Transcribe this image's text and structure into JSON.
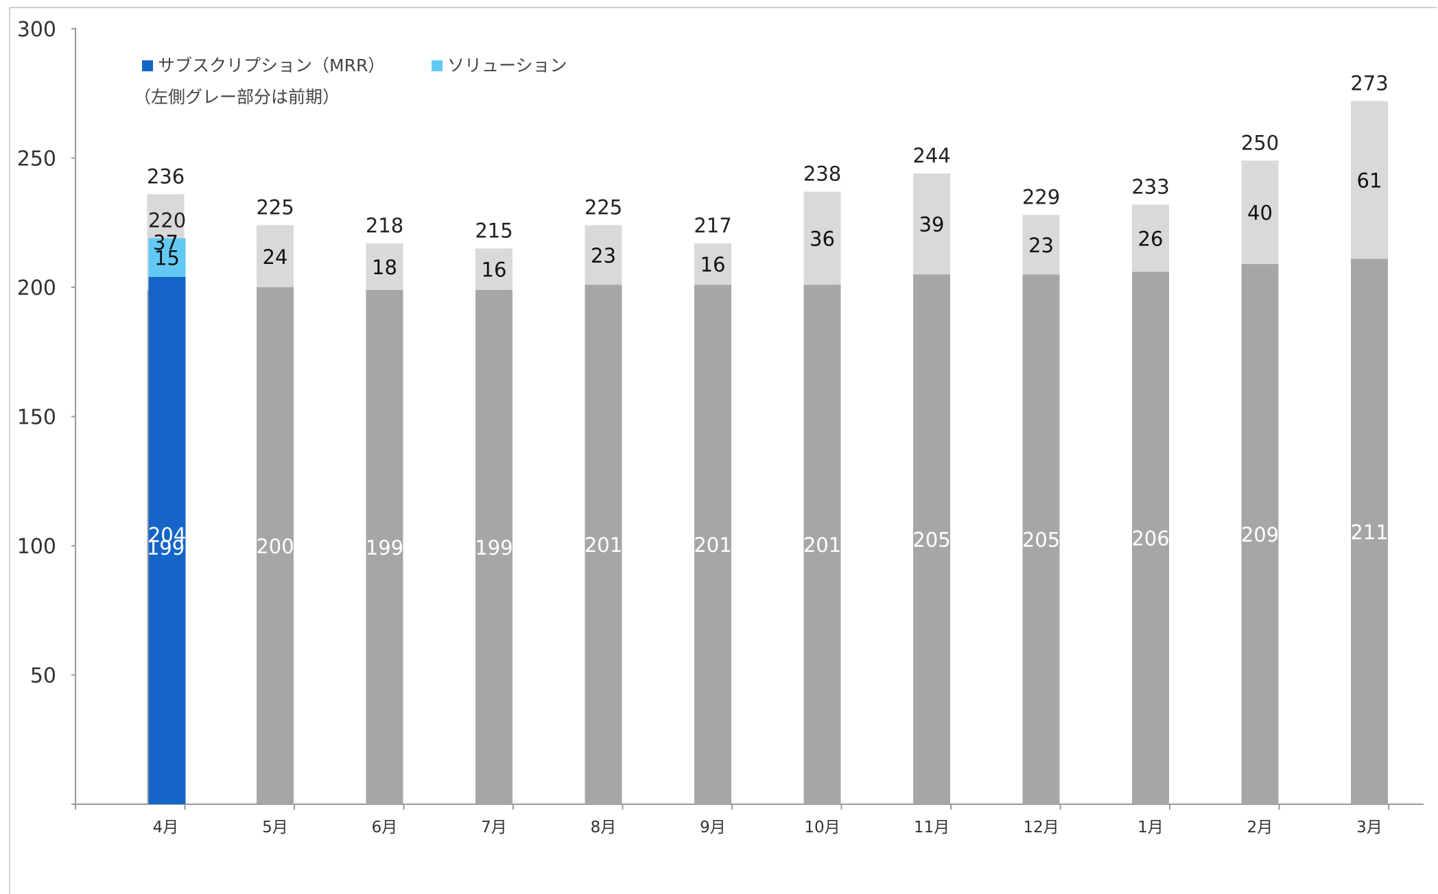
{
  "chart_data": {
    "type": "bar",
    "ylim": [
      0,
      300
    ],
    "yticks": [
      50,
      100,
      150,
      200,
      250,
      300
    ],
    "categories": [
      "4月",
      "5月",
      "6月",
      "7月",
      "8月",
      "9月",
      "10月",
      "11月",
      "12月",
      "1月",
      "2月",
      "3月"
    ],
    "previous_period": {
      "base": [
        199,
        200,
        199,
        199,
        201,
        201,
        201,
        205,
        205,
        206,
        209,
        211
      ],
      "top": [
        37,
        24,
        18,
        16,
        23,
        16,
        36,
        39,
        23,
        26,
        40,
        61
      ],
      "totals": [
        236,
        225,
        218,
        215,
        225,
        217,
        238,
        244,
        229,
        233,
        250,
        273
      ]
    },
    "current_period": {
      "categories": [
        "4月"
      ],
      "subscription": [
        204
      ],
      "solution": [
        15
      ],
      "totals": [
        220
      ]
    },
    "legend": [
      {
        "name": "サブスクリプション（MRR）",
        "color": "#1565c8"
      },
      {
        "name": "ソリューション",
        "color": "#62c9f5"
      }
    ],
    "note": "（左側グレー部分は前期）",
    "colors": {
      "prev_base": "#a6a6a6",
      "prev_top": "#d9d9d9",
      "axis": "#999999"
    }
  }
}
